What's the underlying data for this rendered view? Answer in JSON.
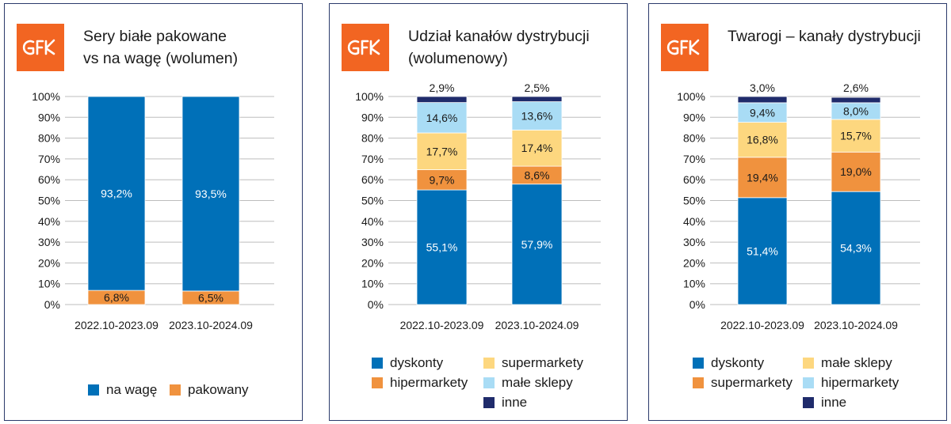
{
  "brand": {
    "logo_text": "GfK",
    "color": "#f26522"
  },
  "colors": {
    "blue": "#0070b8",
    "orange": "#f0923e",
    "yellow": "#fdd77f",
    "lightblue": "#a9dcf5",
    "navy": "#1f2b6b"
  },
  "chart_data": [
    {
      "type": "bar",
      "stacked": true,
      "title": "Sery białe pakowane vs na wagę (wolumen)",
      "title_lines": [
        "Sery białe pakowane",
        "vs na wagę (wolumen)"
      ],
      "categories": [
        "2022.10-2023.09",
        "2023.10-2024.09"
      ],
      "ylim": [
        0,
        100
      ],
      "yticks": [
        "0%",
        "10%",
        "20%",
        "30%",
        "40%",
        "50%",
        "60%",
        "70%",
        "80%",
        "90%",
        "100%"
      ],
      "grid": true,
      "legend_position": "bottom",
      "series": [
        {
          "name": "pakowany",
          "color": "#f0923e",
          "values": [
            6.8,
            6.5
          ],
          "labels": [
            "6,8%",
            "6,5%"
          ]
        },
        {
          "name": "na wagę",
          "color": "#0070b8",
          "values": [
            93.2,
            93.5
          ],
          "labels": [
            "93,2%",
            "93,5%"
          ]
        }
      ],
      "legend": [
        {
          "name": "na wagę",
          "color": "#0070b8"
        },
        {
          "name": "pakowany",
          "color": "#f0923e"
        }
      ]
    },
    {
      "type": "bar",
      "stacked": true,
      "title": "Udział kanałów dystrybucji (wolumenowy)",
      "title_lines": [
        "Udział kanałów dystrybucji",
        "(wolumenowy)"
      ],
      "categories": [
        "2022.10-2023.09",
        "2023.10-2024.09"
      ],
      "ylim": [
        0,
        100
      ],
      "yticks": [
        "0%",
        "10%",
        "20%",
        "30%",
        "40%",
        "50%",
        "60%",
        "70%",
        "80%",
        "90%",
        "100%"
      ],
      "grid": true,
      "legend_position": "bottom",
      "series": [
        {
          "name": "dyskonty",
          "color": "#0070b8",
          "values": [
            55.1,
            57.9
          ],
          "labels": [
            "55,1%",
            "57,9%"
          ]
        },
        {
          "name": "hipermarkety",
          "color": "#f0923e",
          "values": [
            9.7,
            8.6
          ],
          "labels": [
            "9,7%",
            "8,6%"
          ]
        },
        {
          "name": "supermarkety",
          "color": "#fdd77f",
          "values": [
            17.7,
            17.4
          ],
          "labels": [
            "17,7%",
            "17,4%"
          ]
        },
        {
          "name": "małe sklepy",
          "color": "#a9dcf5",
          "values": [
            14.6,
            13.6
          ],
          "labels": [
            "14,6%",
            "13,6%"
          ]
        },
        {
          "name": "inne",
          "color": "#1f2b6b",
          "values": [
            2.9,
            2.5
          ],
          "labels": [
            "2,9%",
            "2,5%"
          ]
        }
      ],
      "legend": [
        {
          "name": "dyskonty",
          "color": "#0070b8"
        },
        {
          "name": "supermarkety",
          "color": "#fdd77f"
        },
        {
          "name": "hipermarkety",
          "color": "#f0923e"
        },
        {
          "name": "małe sklepy",
          "color": "#a9dcf5"
        },
        {
          "name": "inne",
          "color": "#1f2b6b"
        }
      ]
    },
    {
      "type": "bar",
      "stacked": true,
      "title": "Twarogi – kanały dystrybucji",
      "title_lines": [
        "Twarogi – kanały dystrybucji"
      ],
      "categories": [
        "2022.10-2023.09",
        "2023.10-2024.09"
      ],
      "ylim": [
        0,
        100
      ],
      "yticks": [
        "0%",
        "10%",
        "20%",
        "30%",
        "40%",
        "50%",
        "60%",
        "70%",
        "80%",
        "90%",
        "100%"
      ],
      "grid": true,
      "legend_position": "bottom",
      "series": [
        {
          "name": "dyskonty",
          "color": "#0070b8",
          "values": [
            51.4,
            54.3
          ],
          "labels": [
            "51,4%",
            "54,3%"
          ]
        },
        {
          "name": "supermarkety",
          "color": "#f0923e",
          "values": [
            19.4,
            19.0
          ],
          "labels": [
            "19,4%",
            "19,0%"
          ]
        },
        {
          "name": "małe sklepy",
          "color": "#fdd77f",
          "values": [
            16.8,
            15.7
          ],
          "labels": [
            "16,8%",
            "15,7%"
          ]
        },
        {
          "name": "hipermarkety",
          "color": "#a9dcf5",
          "values": [
            9.4,
            8.0
          ],
          "labels": [
            "9,4%",
            "8,0%"
          ]
        },
        {
          "name": "inne",
          "color": "#1f2b6b",
          "values": [
            3.0,
            2.6
          ],
          "labels": [
            "3,0%",
            "2,6%"
          ]
        }
      ],
      "legend": [
        {
          "name": "dyskonty",
          "color": "#0070b8"
        },
        {
          "name": "małe sklepy",
          "color": "#fdd77f"
        },
        {
          "name": "supermarkety",
          "color": "#f0923e"
        },
        {
          "name": "hipermarkety",
          "color": "#a9dcf5"
        },
        {
          "name": "inne",
          "color": "#1f2b6b"
        }
      ]
    }
  ]
}
